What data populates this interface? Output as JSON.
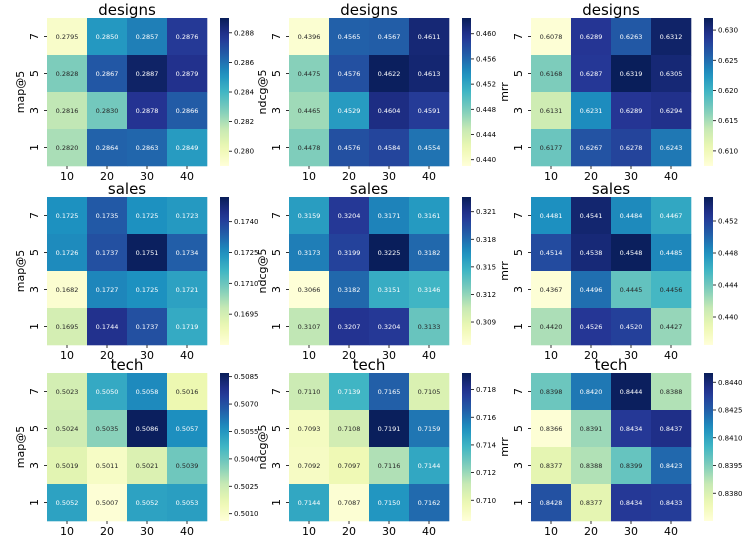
{
  "colormap": [
    "#ffffd9",
    "#edf8b1",
    "#c7e9b4",
    "#7fcdbb",
    "#41b6c4",
    "#1d91c0",
    "#225ea8",
    "#253494",
    "#081d58"
  ],
  "chart_data": [
    {
      "type": "heatmap",
      "title": "designs",
      "ylabel": "map@5",
      "x_ticks": [
        "10",
        "20",
        "30",
        "40"
      ],
      "y_ticks": [
        "7",
        "5",
        "3",
        "1"
      ],
      "values": [
        [
          0.2795,
          0.285,
          0.2857,
          0.2876
        ],
        [
          0.2828,
          0.2867,
          0.2887,
          0.2879
        ],
        [
          0.2816,
          0.283,
          0.2878,
          0.2866
        ],
        [
          0.282,
          0.2864,
          0.2863,
          0.2849
        ]
      ],
      "vmin": 0.279,
      "vmax": 0.289,
      "colorbar_ticks": [
        "0.288",
        "0.286",
        "0.284",
        "0.282",
        "0.280"
      ]
    },
    {
      "type": "heatmap",
      "title": "designs",
      "ylabel": "ndcg@5",
      "x_ticks": [
        "10",
        "20",
        "30",
        "40"
      ],
      "y_ticks": [
        "7",
        "5",
        "3",
        "1"
      ],
      "values": [
        [
          0.4396,
          0.4565,
          0.4567,
          0.4611
        ],
        [
          0.4475,
          0.4576,
          0.4622,
          0.4613
        ],
        [
          0.4465,
          0.4529,
          0.4604,
          0.4591
        ],
        [
          0.4478,
          0.4576,
          0.4584,
          0.4554
        ]
      ],
      "vmin": 0.439,
      "vmax": 0.4625,
      "colorbar_ticks": [
        "0.460",
        "0.456",
        "0.452",
        "0.448",
        "0.444",
        "0.440"
      ]
    },
    {
      "type": "heatmap",
      "title": "designs",
      "ylabel": "mrr",
      "x_ticks": [
        "10",
        "20",
        "30",
        "40"
      ],
      "y_ticks": [
        "7",
        "5",
        "3",
        "1"
      ],
      "values": [
        [
          0.6078,
          0.6289,
          0.6263,
          0.6312
        ],
        [
          0.6168,
          0.6287,
          0.6319,
          0.6305
        ],
        [
          0.6131,
          0.6231,
          0.6289,
          0.6294
        ],
        [
          0.6177,
          0.6267,
          0.6278,
          0.6243
        ]
      ],
      "vmin": 0.6075,
      "vmax": 0.632,
      "colorbar_ticks": [
        "0.630",
        "0.625",
        "0.620",
        "0.615",
        "0.610"
      ]
    },
    {
      "type": "heatmap",
      "title": "sales",
      "ylabel": "map@5",
      "x_ticks": [
        "10",
        "20",
        "30",
        "40"
      ],
      "y_ticks": [
        "7",
        "5",
        "3",
        "1"
      ],
      "values": [
        [
          0.1725,
          0.1735,
          0.1725,
          0.1723
        ],
        [
          0.1726,
          0.1737,
          0.1751,
          0.1734
        ],
        [
          0.1682,
          0.1727,
          0.1725,
          0.1721
        ],
        [
          0.1695,
          0.1744,
          0.1737,
          0.1719
        ]
      ],
      "vmin": 0.168,
      "vmax": 0.1752,
      "colorbar_ticks": [
        "0.1740",
        "0.1725",
        "0.1710",
        "0.1695"
      ]
    },
    {
      "type": "heatmap",
      "title": "sales",
      "ylabel": "ndcg@5",
      "x_ticks": [
        "10",
        "20",
        "30",
        "40"
      ],
      "y_ticks": [
        "7",
        "5",
        "3",
        "1"
      ],
      "values": [
        [
          0.3159,
          0.3204,
          0.3171,
          0.3161
        ],
        [
          0.3173,
          0.3199,
          0.3225,
          0.3182
        ],
        [
          0.3066,
          0.3182,
          0.3151,
          0.3146
        ],
        [
          0.3107,
          0.3207,
          0.3204,
          0.3133
        ]
      ],
      "vmin": 0.3065,
      "vmax": 0.3226,
      "colorbar_ticks": [
        "0.321",
        "0.318",
        "0.315",
        "0.312",
        "0.309"
      ]
    },
    {
      "type": "heatmap",
      "title": "sales",
      "ylabel": "mrr",
      "x_ticks": [
        "10",
        "20",
        "30",
        "40"
      ],
      "y_ticks": [
        "7",
        "5",
        "3",
        "1"
      ],
      "values": [
        [
          0.4481,
          0.4541,
          0.4484,
          0.4467
        ],
        [
          0.4514,
          0.4538,
          0.4548,
          0.4485
        ],
        [
          0.4367,
          0.4496,
          0.4445,
          0.4456
        ],
        [
          0.442,
          0.4526,
          0.452,
          0.4427
        ]
      ],
      "vmin": 0.4365,
      "vmax": 0.455,
      "colorbar_ticks": [
        "0.452",
        "0.448",
        "0.444",
        "0.440"
      ]
    },
    {
      "type": "heatmap",
      "title": "tech",
      "ylabel": "map@5",
      "x_ticks": [
        "10",
        "20",
        "30",
        "40"
      ],
      "y_ticks": [
        "7",
        "5",
        "3",
        "1"
      ],
      "values": [
        [
          0.5023,
          0.505,
          0.5058,
          0.5016
        ],
        [
          0.5024,
          0.5035,
          0.5086,
          0.5057
        ],
        [
          0.5019,
          0.5011,
          0.5021,
          0.5039
        ],
        [
          0.5052,
          0.5007,
          0.5052,
          0.5053
        ]
      ],
      "vmin": 0.5006,
      "vmax": 0.5087,
      "colorbar_ticks": [
        "0.5085",
        "0.5070",
        "0.5055",
        "0.5040",
        "0.5025",
        "0.5010"
      ]
    },
    {
      "type": "heatmap",
      "title": "tech",
      "ylabel": "ndcg@5",
      "x_ticks": [
        "10",
        "20",
        "30",
        "40"
      ],
      "y_ticks": [
        "7",
        "5",
        "3",
        "1"
      ],
      "values": [
        [
          0.711,
          0.7139,
          0.7165,
          0.7105
        ],
        [
          0.7093,
          0.7108,
          0.7191,
          0.7159
        ],
        [
          0.7092,
          0.7097,
          0.7116,
          0.7144
        ],
        [
          0.7144,
          0.7087,
          0.715,
          0.7162
        ]
      ],
      "vmin": 0.7085,
      "vmax": 0.7192,
      "colorbar_ticks": [
        "0.718",
        "0.716",
        "0.714",
        "0.712",
        "0.710"
      ]
    },
    {
      "type": "heatmap",
      "title": "tech",
      "ylabel": "mrr",
      "x_ticks": [
        "10",
        "20",
        "30",
        "40"
      ],
      "y_ticks": [
        "7",
        "5",
        "3",
        "1"
      ],
      "values": [
        [
          0.8398,
          0.842,
          0.8444,
          0.8388
        ],
        [
          0.8366,
          0.8391,
          0.8434,
          0.8437
        ],
        [
          0.8377,
          0.8388,
          0.8399,
          0.8423
        ],
        [
          0.8428,
          0.8377,
          0.8434,
          0.8433
        ]
      ],
      "vmin": 0.8365,
      "vmax": 0.8445,
      "colorbar_ticks": [
        "0.8440",
        "0.8425",
        "0.8410",
        "0.8395",
        "0.8380"
      ]
    }
  ]
}
